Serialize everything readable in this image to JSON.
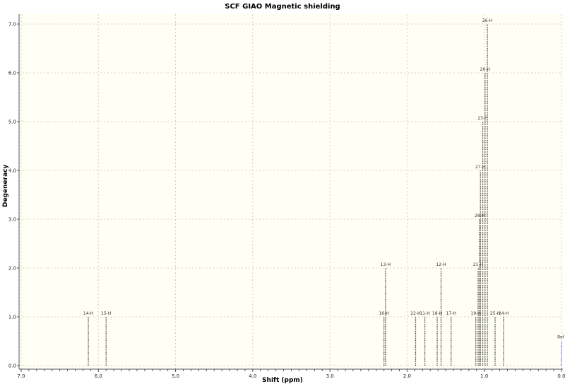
{
  "chart_data": {
    "type": "bar",
    "title": "SCF GIAO Magnetic shielding",
    "xlabel": "Shift (ppm)",
    "ylabel": "Degeneracy",
    "xlim": [
      7.0,
      0.0
    ],
    "ylim": [
      0.0,
      7.0
    ],
    "x_reversed": true,
    "grid": true,
    "xticks": [
      "7.0",
      "6.0",
      "5.0",
      "4.0",
      "3.0",
      "2.0",
      "1.0",
      "0.0"
    ],
    "yticks": [
      "0.0",
      "1.0",
      "2.0",
      "3.0",
      "4.0",
      "5.0",
      "6.0",
      "7.0"
    ],
    "peaks": [
      {
        "label": "14-H",
        "shift": 6.13,
        "degeneracy": 1
      },
      {
        "label": "15-H",
        "shift": 5.9,
        "degeneracy": 1
      },
      {
        "label": "16-H",
        "shift": 2.3,
        "degeneracy": 1
      },
      {
        "label": "13-H",
        "shift": 2.28,
        "degeneracy": 2
      },
      {
        "label": "22-H",
        "shift": 1.89,
        "degeneracy": 1
      },
      {
        "label": "11-H",
        "shift": 1.77,
        "degeneracy": 1
      },
      {
        "label": "18-H",
        "shift": 1.61,
        "degeneracy": 1
      },
      {
        "label": "12-H",
        "shift": 1.56,
        "degeneracy": 2
      },
      {
        "label": "17-H",
        "shift": 1.43,
        "degeneracy": 1
      },
      {
        "label": "19-H",
        "shift": 1.11,
        "degeneracy": 1
      },
      {
        "label": "21-H",
        "shift": 1.08,
        "degeneracy": 2
      },
      {
        "label": "28-H",
        "shift": 1.06,
        "degeneracy": 3
      },
      {
        "label": "27-H",
        "shift": 1.05,
        "degeneracy": 4
      },
      {
        "label": "23-H",
        "shift": 1.02,
        "degeneracy": 5
      },
      {
        "label": "20-H",
        "shift": 0.99,
        "degeneracy": 6
      },
      {
        "label": "26-H",
        "shift": 0.96,
        "degeneracy": 7
      },
      {
        "label": "25-H",
        "shift": 0.86,
        "degeneracy": 1
      },
      {
        "label": "24-H",
        "shift": 0.75,
        "degeneracy": 1
      }
    ],
    "reference": {
      "label": "Ref",
      "shift": 0.0,
      "degeneracy": 0.5
    },
    "colors": {
      "background": "#fffff5",
      "peak": "#555555",
      "reference": "#6a6aff",
      "grid": "#d0d0c0"
    }
  }
}
